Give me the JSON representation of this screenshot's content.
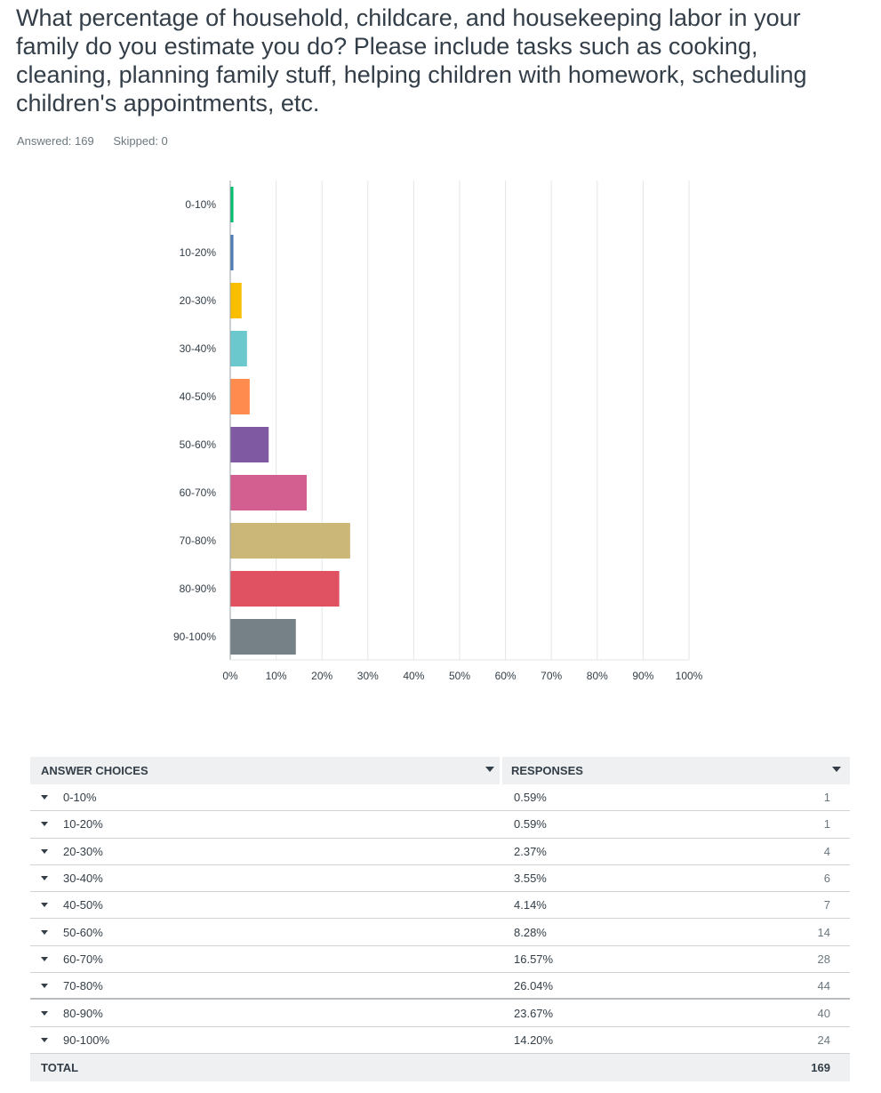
{
  "question": {
    "title": "What percentage of household, childcare, and housekeeping labor in your family do you estimate you do? Please include tasks such as cooking, cleaning, planning family stuff, helping children with homework, scheduling children's appointments, etc.",
    "answered_label": "Answered: 169",
    "skipped_label": "Skipped: 0"
  },
  "chart_data": {
    "type": "bar",
    "orientation": "horizontal",
    "categories": [
      "0-10%",
      "10-20%",
      "20-30%",
      "30-40%",
      "40-50%",
      "50-60%",
      "60-70%",
      "70-80%",
      "80-90%",
      "90-100%"
    ],
    "values": [
      0.59,
      0.59,
      2.37,
      3.55,
      4.14,
      8.28,
      16.57,
      26.04,
      23.67,
      14.2
    ],
    "colors": [
      "#00bf6f",
      "#507cb6",
      "#f9be00",
      "#6bc8cd",
      "#ff8b4f",
      "#7f5aa2",
      "#d25f90",
      "#cbb878",
      "#e05162",
      "#768087"
    ],
    "xlim": [
      0,
      100
    ],
    "xticks": [
      "0%",
      "10%",
      "20%",
      "30%",
      "40%",
      "50%",
      "60%",
      "70%",
      "80%",
      "90%",
      "100%"
    ],
    "grid": true,
    "title": "",
    "xlabel": "",
    "ylabel": ""
  },
  "table": {
    "header_choice": "ANSWER CHOICES",
    "header_responses": "RESPONSES",
    "rows": [
      {
        "choice": "0-10%",
        "percent": "0.59%",
        "count": "1"
      },
      {
        "choice": "10-20%",
        "percent": "0.59%",
        "count": "1"
      },
      {
        "choice": "20-30%",
        "percent": "2.37%",
        "count": "4"
      },
      {
        "choice": "30-40%",
        "percent": "3.55%",
        "count": "6"
      },
      {
        "choice": "40-50%",
        "percent": "4.14%",
        "count": "7"
      },
      {
        "choice": "50-60%",
        "percent": "8.28%",
        "count": "14"
      },
      {
        "choice": "60-70%",
        "percent": "16.57%",
        "count": "28"
      },
      {
        "choice": "70-80%",
        "percent": "26.04%",
        "count": "44"
      },
      {
        "choice": "80-90%",
        "percent": "23.67%",
        "count": "40"
      },
      {
        "choice": "90-100%",
        "percent": "14.20%",
        "count": "24"
      }
    ],
    "total_label": "TOTAL",
    "total_count": "169"
  }
}
